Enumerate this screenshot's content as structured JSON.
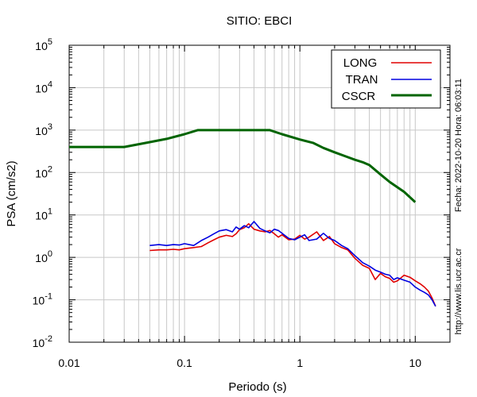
{
  "chart_data": {
    "type": "line",
    "title": "SITIO: EBCI",
    "xlabel": "Periodo (s)",
    "ylabel": "PSA (cm/s2)",
    "xscale": "log",
    "yscale": "log",
    "xlim": [
      0.01,
      20
    ],
    "ylim": [
      0.01,
      100000
    ],
    "x_ticks": [
      "0.01",
      "0.1",
      "1",
      "10"
    ],
    "y_ticks": [
      {
        "base": "10",
        "exp": "-2"
      },
      {
        "base": "10",
        "exp": "-1"
      },
      {
        "base": "10",
        "exp": "0"
      },
      {
        "base": "10",
        "exp": "1"
      },
      {
        "base": "10",
        "exp": "2"
      },
      {
        "base": "10",
        "exp": "3"
      },
      {
        "base": "10",
        "exp": "4"
      },
      {
        "base": "10",
        "exp": "5"
      }
    ],
    "grid": true,
    "legend_position": "top-right",
    "side_note_date": "Fecha: 2022-10-20  Hora: 06:03:11",
    "side_note_url": "http://www.lis.ucr.ac.cr",
    "series": [
      {
        "name": "LONG",
        "color": "#e00000",
        "width": 1.6,
        "x": [
          0.05,
          0.06,
          0.07,
          0.08,
          0.09,
          0.1,
          0.12,
          0.14,
          0.16,
          0.18,
          0.2,
          0.23,
          0.26,
          0.28,
          0.3,
          0.33,
          0.36,
          0.4,
          0.45,
          0.5,
          0.55,
          0.6,
          0.65,
          0.7,
          0.8,
          0.9,
          1.0,
          1.1,
          1.2,
          1.4,
          1.6,
          1.8,
          2.0,
          2.3,
          2.6,
          3.0,
          3.5,
          4.0,
          4.5,
          5.0,
          5.5,
          6.0,
          6.5,
          7.0,
          8.0,
          9.0,
          10.0,
          11.0,
          12.0,
          13.0,
          14.0,
          15.0
        ],
        "y": [
          1.45,
          1.5,
          1.5,
          1.55,
          1.5,
          1.6,
          1.7,
          1.8,
          2.2,
          2.6,
          3.0,
          3.3,
          3.1,
          3.6,
          4.5,
          5.0,
          6.2,
          4.6,
          4.2,
          4.0,
          4.3,
          3.6,
          3.0,
          3.4,
          2.6,
          2.7,
          3.3,
          2.7,
          3.0,
          4.0,
          2.5,
          3.1,
          2.1,
          1.7,
          1.5,
          0.95,
          0.65,
          0.55,
          0.3,
          0.42,
          0.35,
          0.32,
          0.26,
          0.28,
          0.38,
          0.34,
          0.28,
          0.24,
          0.2,
          0.16,
          0.11,
          0.07
        ]
      },
      {
        "name": "TRAN",
        "color": "#0000e0",
        "width": 1.6,
        "x": [
          0.05,
          0.06,
          0.07,
          0.08,
          0.09,
          0.1,
          0.12,
          0.14,
          0.16,
          0.18,
          0.2,
          0.23,
          0.26,
          0.28,
          0.3,
          0.33,
          0.36,
          0.4,
          0.45,
          0.5,
          0.55,
          0.6,
          0.65,
          0.7,
          0.8,
          0.9,
          1.0,
          1.1,
          1.2,
          1.4,
          1.6,
          1.8,
          2.0,
          2.3,
          2.6,
          3.0,
          3.5,
          4.0,
          4.5,
          5.0,
          5.5,
          6.0,
          6.5,
          7.0,
          8.0,
          9.0,
          10.0,
          11.0,
          12.0,
          13.0,
          14.0,
          15.0
        ],
        "y": [
          1.9,
          2.0,
          1.9,
          2.0,
          1.95,
          2.1,
          1.9,
          2.5,
          3.0,
          3.6,
          4.2,
          4.5,
          4.0,
          5.2,
          4.6,
          5.6,
          5.0,
          7.0,
          4.8,
          4.2,
          3.8,
          4.6,
          4.3,
          3.7,
          2.8,
          2.6,
          3.0,
          3.4,
          2.5,
          2.7,
          3.7,
          2.8,
          2.5,
          1.9,
          1.6,
          1.1,
          0.75,
          0.62,
          0.5,
          0.45,
          0.4,
          0.38,
          0.3,
          0.33,
          0.29,
          0.26,
          0.2,
          0.17,
          0.15,
          0.13,
          0.1,
          0.07
        ]
      },
      {
        "name": "CSCR",
        "color": "#006400",
        "width": 3,
        "x": [
          0.01,
          0.02,
          0.03,
          0.05,
          0.07,
          0.1,
          0.13,
          0.2,
          0.3,
          0.4,
          0.55,
          0.7,
          1.0,
          1.3,
          1.6,
          2.0,
          2.5,
          3.0,
          3.5,
          4.0,
          5.0,
          6.0,
          8.0,
          10.0
        ],
        "y": [
          400,
          400,
          400,
          520,
          620,
          800,
          1000,
          1000,
          1000,
          1000,
          1000,
          800,
          600,
          500,
          380,
          300,
          240,
          200,
          175,
          150,
          90,
          60,
          35,
          20
        ]
      }
    ]
  }
}
